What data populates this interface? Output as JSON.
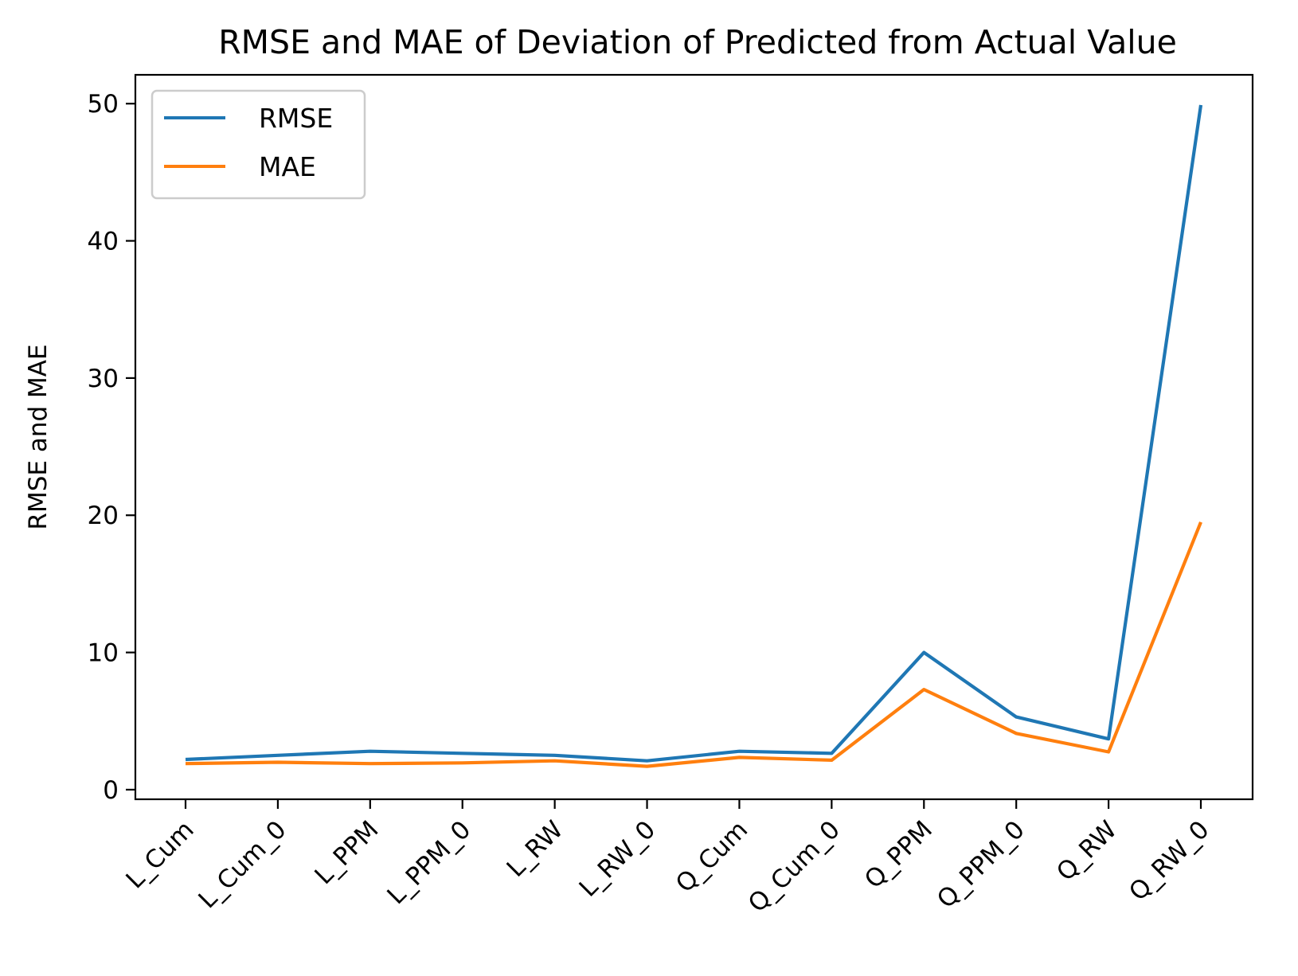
{
  "chart_data": {
    "type": "line",
    "title": "RMSE and MAE of Deviation of Predicted from Actual Value",
    "xlabel": "",
    "ylabel": "RMSE and MAE",
    "categories": [
      "L_Cum",
      "L_Cum_0",
      "L_PPM",
      "L_PPM_0",
      "L_RW",
      "L_RW_0",
      "Q_Cum",
      "Q_Cum_0",
      "Q_PPM",
      "Q_PPM_0",
      "Q_RW",
      "Q_RW_0"
    ],
    "yticks": [
      "0",
      "10",
      "20",
      "30",
      "40",
      "50"
    ],
    "ylim": [
      -0.7,
      52.1
    ],
    "series": [
      {
        "name": "RMSE",
        "color": "#1f77b4",
        "values": [
          2.2,
          2.5,
          2.8,
          2.65,
          2.5,
          2.1,
          2.8,
          2.65,
          10.0,
          5.3,
          3.7,
          49.9
        ]
      },
      {
        "name": "MAE",
        "color": "#ff7f0e",
        "values": [
          1.9,
          2.0,
          1.9,
          1.95,
          2.1,
          1.7,
          2.35,
          2.15,
          7.3,
          4.1,
          2.75,
          19.5
        ]
      }
    ],
    "grid": false,
    "legend": "top-left"
  }
}
